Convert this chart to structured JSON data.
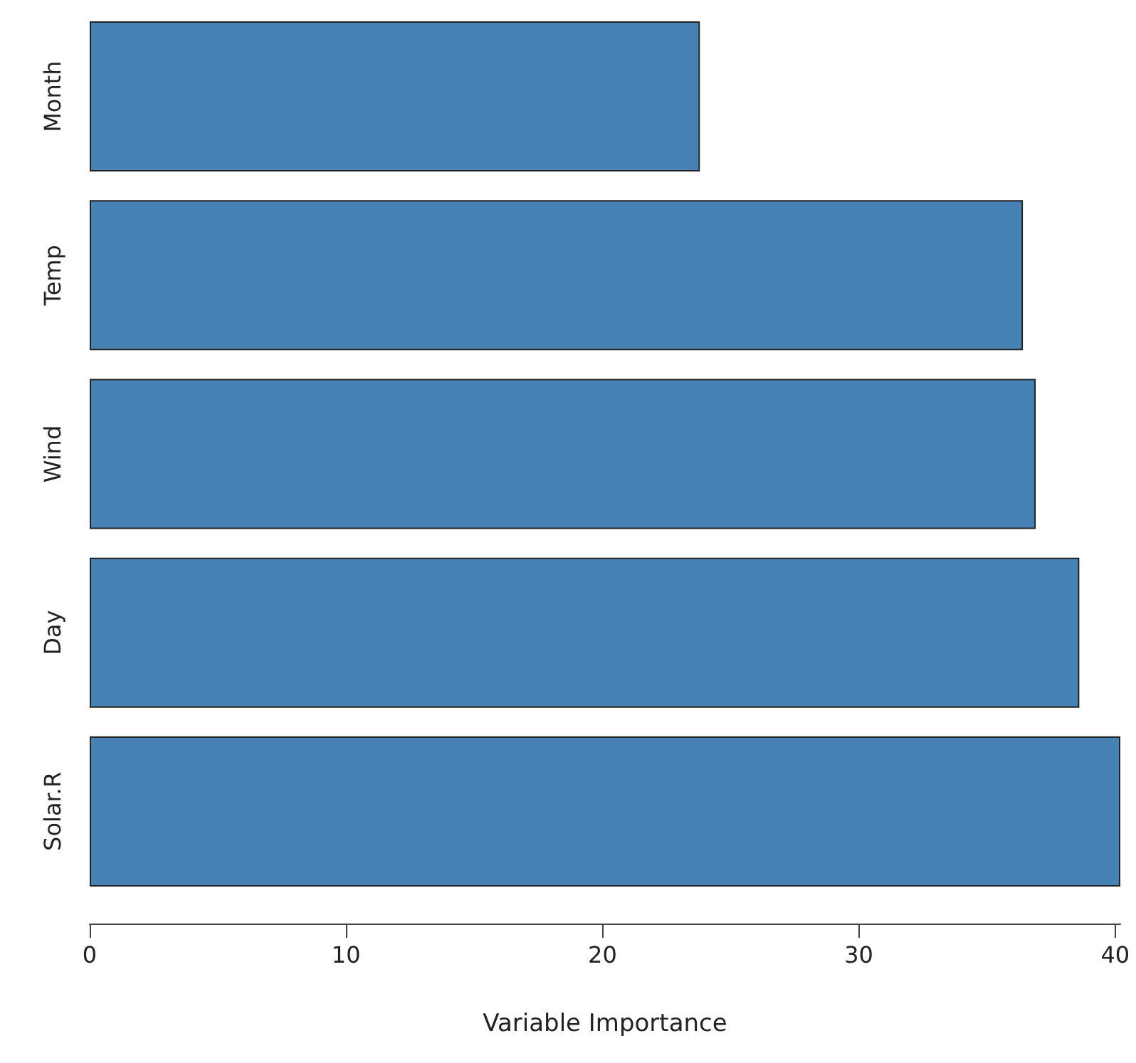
{
  "chart_data": {
    "type": "bar",
    "orientation": "horizontal",
    "xlabel": "Variable Importance",
    "categories": [
      "Month",
      "Temp",
      "Wind",
      "Day",
      "Solar.R"
    ],
    "values": [
      23.8,
      36.4,
      36.9,
      38.6,
      40.2
    ],
    "color": "#4682b4",
    "xlim": [
      0,
      40.2
    ],
    "xticks": [
      0,
      10,
      20,
      30,
      40
    ],
    "grid": false
  }
}
